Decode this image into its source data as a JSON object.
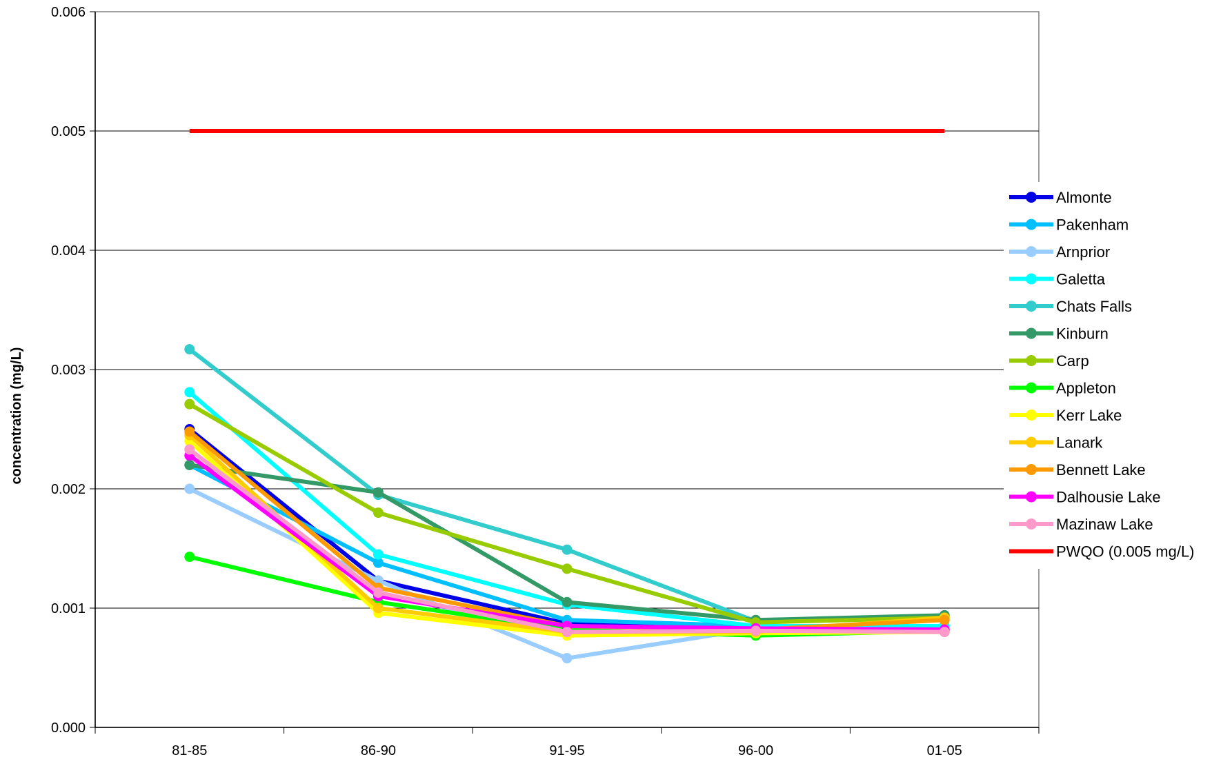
{
  "chart_data": {
    "type": "line",
    "title": "",
    "xlabel": "",
    "ylabel": "concentration (mg/L)",
    "categories": [
      "81-85",
      "86-90",
      "91-95",
      "96-00",
      "01-05"
    ],
    "ylim": [
      0,
      0.006
    ],
    "yticks": [
      "0.000",
      "0.001",
      "0.002",
      "0.003",
      "0.004",
      "0.005",
      "0.006"
    ],
    "grid": true,
    "legend_position": "right",
    "series": [
      {
        "name": "Almonte",
        "color": "#0000e6",
        "values": [
          0.0025,
          0.00123,
          0.00087,
          0.00083,
          0.00082
        ]
      },
      {
        "name": "Pakenham",
        "color": "#00bfff",
        "values": [
          0.0022,
          0.00138,
          0.0009,
          0.00085,
          0.00085
        ]
      },
      {
        "name": "Arnprior",
        "color": "#99ccff",
        "values": [
          0.002,
          0.00123,
          0.00058,
          0.00083,
          0.00082
        ]
      },
      {
        "name": "Galetta",
        "color": "#00ffff",
        "values": [
          0.00281,
          0.00145,
          0.00103,
          0.00085,
          0.00085
        ]
      },
      {
        "name": "Chats Falls",
        "color": "#33cccc",
        "values": [
          0.00317,
          0.00195,
          0.00149,
          0.00089,
          0.00093
        ]
      },
      {
        "name": "Kinburn",
        "color": "#339966",
        "values": [
          0.0022,
          0.00197,
          0.00105,
          0.0009,
          0.00094
        ]
      },
      {
        "name": "Carp",
        "color": "#99cc00",
        "values": [
          0.00271,
          0.0018,
          0.00133,
          0.00088,
          0.00092
        ]
      },
      {
        "name": "Appleton",
        "color": "#00ff00",
        "values": [
          0.00143,
          0.00105,
          0.00082,
          0.00077,
          0.00081
        ]
      },
      {
        "name": "Kerr Lake",
        "color": "#ffff00",
        "values": [
          0.0024,
          0.00096,
          0.00077,
          0.00079,
          0.0008
        ]
      },
      {
        "name": "Lanark",
        "color": "#ffcc00",
        "values": [
          0.00245,
          0.001,
          0.0008,
          0.0008,
          0.00092
        ]
      },
      {
        "name": "Bennett Lake",
        "color": "#ff9900",
        "values": [
          0.00248,
          0.00117,
          0.00085,
          0.00082,
          0.0009
        ]
      },
      {
        "name": "Dalhousie Lake",
        "color": "#ff00ff",
        "values": [
          0.00228,
          0.0011,
          0.00085,
          0.00083,
          0.00082
        ]
      },
      {
        "name": "Mazinaw Lake",
        "color": "#ff99cc",
        "values": [
          0.00233,
          0.00113,
          0.0008,
          0.00081,
          0.0008
        ]
      },
      {
        "name": "PWQO (0.005 mg/L)",
        "color": "#ff0000",
        "values": [
          0.005,
          0.005,
          0.005,
          0.005,
          0.005
        ],
        "markers": false
      }
    ]
  }
}
